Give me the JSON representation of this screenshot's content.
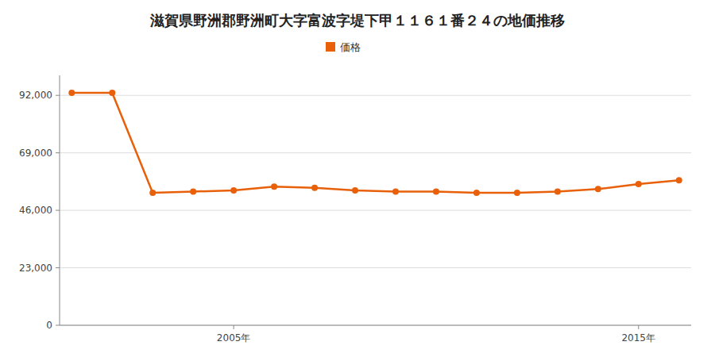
{
  "chart_data": {
    "type": "line",
    "title": "滋賀県野洲郡野洲町大字富波字堤下甲１１６１番２４の地価推移",
    "x": [
      2001,
      2002,
      2003,
      2004,
      2005,
      2006,
      2007,
      2008,
      2009,
      2010,
      2011,
      2012,
      2013,
      2014,
      2015,
      2016
    ],
    "series": [
      {
        "name": "価格",
        "color": "#e8600a",
        "marker": "circle",
        "values": [
          93000,
          93000,
          53000,
          53500,
          54000,
          55500,
          55000,
          54000,
          53500,
          53500,
          53000,
          53000,
          53500,
          54500,
          56500,
          58000
        ]
      }
    ],
    "xlim": [
      2000.7,
      2016.3
    ],
    "xticks": [
      {
        "value": 2005,
        "label": "2005年"
      },
      {
        "value": 2015,
        "label": "2015年"
      }
    ],
    "ylim": [
      0,
      100000
    ],
    "yticks": [
      0,
      {
        "value": 23000,
        "label": "23,000"
      },
      {
        "value": 46000,
        "label": "46,000"
      },
      {
        "value": 69000,
        "label": "69,000"
      },
      {
        "value": 92000,
        "label": "92,000"
      }
    ],
    "grid": true,
    "legend": "top"
  }
}
